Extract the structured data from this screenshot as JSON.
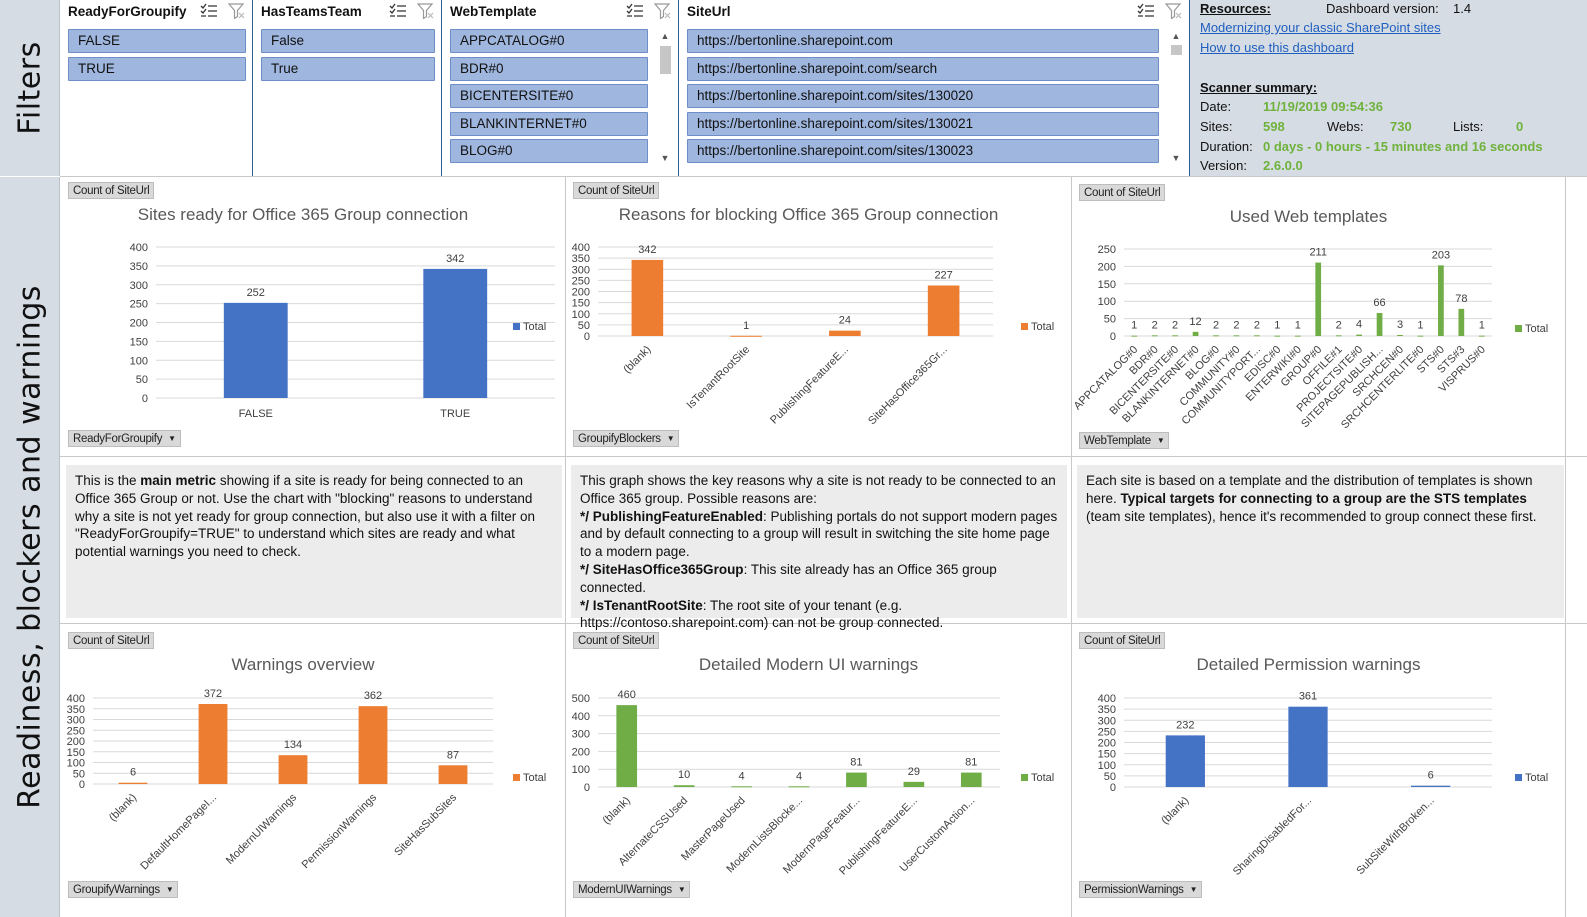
{
  "side_labels": {
    "filters": "Filters",
    "readiness": "Readiness, blockers and warnings"
  },
  "slicers": [
    {
      "title": "ReadyForGroupify",
      "items": [
        "FALSE",
        "TRUE"
      ]
    },
    {
      "title": "HasTeamsTeam",
      "items": [
        "False",
        "True"
      ]
    },
    {
      "title": "WebTemplate",
      "items": [
        "APPCATALOG#0",
        "BDR#0",
        "BICENTERSITE#0",
        "BLANKINTERNET#0",
        "BLOG#0"
      ]
    },
    {
      "title": "SiteUrl",
      "items": [
        "https://bertonline.sharepoint.com",
        "https://bertonline.sharepoint.com/search",
        "https://bertonline.sharepoint.com/sites/130020",
        "https://bertonline.sharepoint.com/sites/130021",
        "https://bertonline.sharepoint.com/sites/130023"
      ]
    }
  ],
  "resources": {
    "label": "Resources:",
    "dashboard_version_label": "Dashboard version:",
    "dashboard_version": "1.4",
    "link1": "Modernizing your classic SharePoint sites",
    "link2": "How to use this dashboard",
    "summary_label": "Scanner summary:",
    "date_label": "Date:",
    "date": "11/19/2019 09:54:36",
    "sites_label": "Sites:",
    "sites": "598",
    "webs_label": "Webs:",
    "webs": "730",
    "lists_label": "Lists:",
    "lists": "0",
    "duration_label": "Duration:",
    "duration": "0 days - 0 hours - 15 minutes and 16 seconds",
    "version_label": "Version:",
    "version": "2.6.0.0"
  },
  "texts": {
    "t1": [
      "This is the ",
      "main metric",
      " showing if a site is ready for being connected to an Office 365 Group or not. Use the chart with \"blocking\" reasons to understand why a site is not yet ready for group connection, but also use it with a filter on \"ReadyForGroupify=TRUE\" to understand which sites are ready and what potential warnings you need to check."
    ],
    "t2_intro": "This graph shows the key reasons why a site is not ready to be connected to an Office 365 group. Possible reasons are:",
    "t2_items": [
      {
        "key": "*/ PublishingFeatureEnabled",
        "text": ": Publishing portals do not support modern pages and by default connecting to a group will result in switching the site home page to a modern page."
      },
      {
        "key": "*/ SiteHasOffice365Group",
        "text": ": This site already has an Office 365 group connected."
      },
      {
        "key": "*/ IsTenantRootSite",
        "text": ": The root site of your tenant (e.g. https://contoso.sharepoint.com) can not be group connected."
      }
    ],
    "t3": [
      "Each site is based on a template and the distribution of templates is shown here. ",
      "Typical targets for connecting to a group are the STS templates",
      " (team site templates), hence it's recommended to group connect these first."
    ]
  },
  "chart_data": [
    {
      "type": "bar",
      "title": "Sites ready for Office 365 Group connection",
      "value_button": "Count of SiteUrl",
      "field_button": "ReadyForGroupify",
      "categories": [
        "FALSE",
        "TRUE"
      ],
      "series": [
        {
          "name": "Total",
          "values": [
            252,
            342
          ]
        }
      ],
      "yticks": [
        0,
        50,
        100,
        150,
        200,
        250,
        300,
        350,
        400
      ],
      "ylim": [
        0,
        400
      ],
      "color": "#4472c4",
      "rotate_labels": false
    },
    {
      "type": "bar",
      "title": "Reasons for blocking Office 365 Group connection",
      "value_button": "Count of SiteUrl",
      "field_button": "GroupifyBlockers",
      "categories": [
        "(blank)",
        "IsTenantRootSite",
        "PublishingFeatureE...",
        "SiteHasOffice365Gr..."
      ],
      "series": [
        {
          "name": "Total",
          "values": [
            342,
            1,
            24,
            227
          ]
        }
      ],
      "yticks": [
        0,
        50,
        100,
        150,
        200,
        250,
        300,
        350,
        400
      ],
      "ylim": [
        0,
        400
      ],
      "color": "#ed7d31",
      "rotate_labels": true
    },
    {
      "type": "bar",
      "title": "Used Web templates",
      "value_button": "Count of SiteUrl",
      "field_button": "WebTemplate",
      "categories": [
        "APPCATALOG#0",
        "BDR#0",
        "BICENTERSITE#0",
        "BLANKINTERNET#0",
        "BLOG#0",
        "COMMUNITY#0",
        "COMMUNITYPORT...",
        "EDISC#0",
        "ENTERWIKI#0",
        "GROUP#0",
        "OFFILE#1",
        "PROJECTSITE#0",
        "SITEPAGEPUBLISH...",
        "SRCHCEN#0",
        "SRCHCENTERLITE#0",
        "STS#0",
        "STS#3",
        "VISPRUS#0"
      ],
      "series": [
        {
          "name": "Total",
          "values": [
            1,
            2,
            2,
            12,
            2,
            2,
            2,
            1,
            1,
            211,
            2,
            4,
            66,
            3,
            1,
            203,
            78,
            1
          ]
        }
      ],
      "yticks": [
        0,
        50,
        100,
        150,
        200,
        250
      ],
      "ylim": [
        0,
        250
      ],
      "color": "#70ad47",
      "rotate_labels": true
    },
    {
      "type": "bar",
      "title": "Warnings overview",
      "value_button": "Count of SiteUrl",
      "field_button": "GroupifyWarnings",
      "categories": [
        "(blank)",
        "DefaultHomePageI...",
        "ModernUIWarnings",
        "PermissionWarnings",
        "SiteHasSubSites"
      ],
      "series": [
        {
          "name": "Total",
          "values": [
            6,
            372,
            134,
            362,
            87
          ]
        }
      ],
      "yticks": [
        0,
        50,
        100,
        150,
        200,
        250,
        300,
        350,
        400
      ],
      "ylim": [
        0,
        400
      ],
      "color": "#ed7d31",
      "rotate_labels": true
    },
    {
      "type": "bar",
      "title": "Detailed Modern UI warnings",
      "value_button": "Count of SiteUrl",
      "field_button": "ModernUIWarnings",
      "categories": [
        "(blank)",
        "AlternateCSSUsed",
        "MasterPageUsed",
        "ModernListsBlocke...",
        "ModernPageFeatur...",
        "PublishingFeatureE...",
        "UserCustomAction..."
      ],
      "series": [
        {
          "name": "Total",
          "values": [
            460,
            10,
            4,
            4,
            81,
            29,
            81
          ]
        }
      ],
      "yticks": [
        0,
        100,
        200,
        300,
        400,
        500
      ],
      "ylim": [
        0,
        500
      ],
      "color": "#70ad47",
      "rotate_labels": true
    },
    {
      "type": "bar",
      "title": "Detailed Permission warnings",
      "value_button": "Count of SiteUrl",
      "field_button": "PermissionWarnings",
      "categories": [
        "(blank)",
        "SharingDisabledFor...",
        "SubSiteWithBroken..."
      ],
      "series": [
        {
          "name": "Total",
          "values": [
            232,
            361,
            6
          ]
        }
      ],
      "yticks": [
        0,
        50,
        100,
        150,
        200,
        250,
        300,
        350,
        400
      ],
      "ylim": [
        0,
        400
      ],
      "color": "#4472c4",
      "rotate_labels": true
    }
  ]
}
